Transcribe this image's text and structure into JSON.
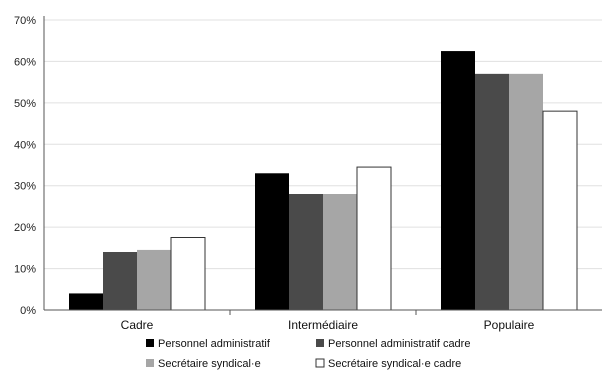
{
  "chart_data": {
    "type": "bar",
    "title": "",
    "xlabel": "",
    "ylabel": "",
    "ylim": [
      0,
      70
    ],
    "y_ticks": [
      "0%",
      "10%",
      "20%",
      "30%",
      "40%",
      "50%",
      "60%",
      "70%"
    ],
    "categories": [
      "Cadre",
      "Intermédiaire",
      "Populaire"
    ],
    "series": [
      {
        "name": "Personnel administratif",
        "values": [
          4,
          33,
          62.5
        ],
        "color": "#000000"
      },
      {
        "name": "Personnel administratif cadre",
        "values": [
          14,
          28,
          57
        ],
        "color": "#4a4a4a"
      },
      {
        "name": "Secrétaire syndical·e",
        "values": [
          14.5,
          28,
          57
        ],
        "color": "#a6a6a6"
      },
      {
        "name": "Secrétaire syndical·e cadre",
        "values": [
          17.5,
          34.5,
          48
        ],
        "color": "#ffffff"
      }
    ],
    "grid": true,
    "legend": "bottom"
  }
}
